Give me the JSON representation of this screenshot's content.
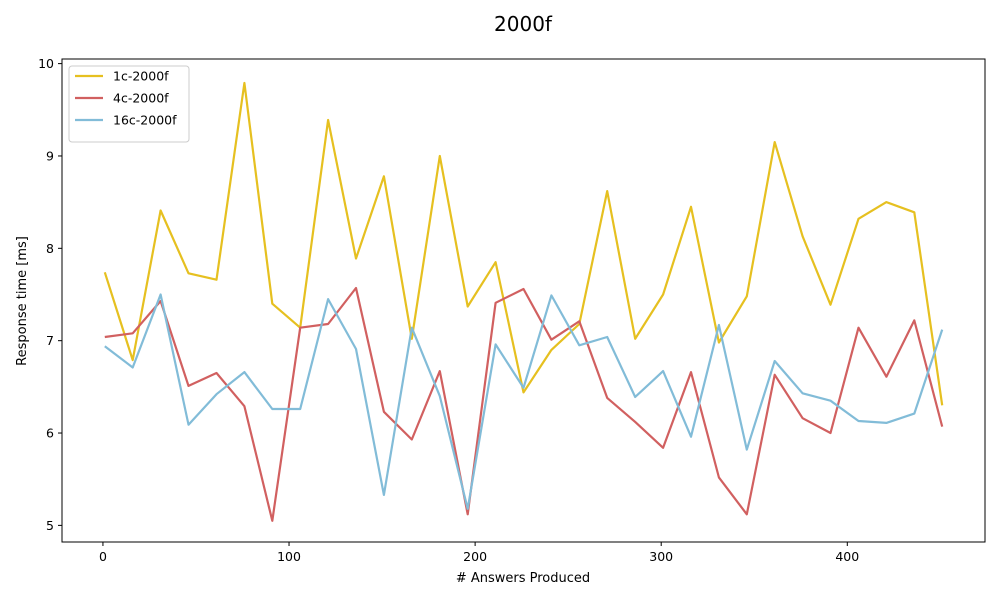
{
  "chart_data": {
    "type": "line",
    "title": "2000f",
    "xlabel": "# Answers Produced",
    "ylabel": "Response time [ms]",
    "xlim": [
      -22,
      474
    ],
    "ylim": [
      4.82,
      10.05
    ],
    "xticks": [
      0,
      100,
      200,
      300,
      400
    ],
    "yticks": [
      5,
      6,
      7,
      8,
      9,
      10
    ],
    "grid": false,
    "legend_position": "top-left",
    "x": [
      1,
      16,
      31,
      46,
      61,
      76,
      91,
      106,
      121,
      136,
      151,
      166,
      181,
      196,
      211,
      226,
      241,
      256,
      271,
      286,
      301,
      316,
      331,
      346,
      361,
      376,
      391,
      406,
      421,
      436,
      451
    ],
    "series": [
      {
        "name": "1c-2000f",
        "color": "#e6c020",
        "values": [
          7.74,
          6.79,
          8.41,
          7.73,
          7.66,
          9.79,
          7.4,
          7.14,
          9.39,
          7.89,
          8.78,
          7.02,
          9.0,
          7.37,
          7.85,
          6.44,
          6.9,
          7.18,
          8.62,
          7.02,
          7.5,
          8.45,
          6.98,
          7.48,
          9.15,
          8.13,
          7.39,
          8.32,
          8.5,
          8.39,
          6.3
        ]
      },
      {
        "name": "4c-2000f",
        "color": "#d16060",
        "values": [
          7.04,
          7.08,
          7.43,
          6.51,
          6.65,
          6.29,
          5.05,
          7.14,
          7.18,
          7.57,
          6.23,
          5.93,
          6.67,
          5.12,
          7.41,
          7.56,
          7.01,
          7.21,
          6.38,
          6.12,
          5.84,
          6.66,
          5.52,
          5.12,
          6.63,
          6.16,
          6.0,
          7.14,
          6.61,
          7.22,
          6.07
        ]
      },
      {
        "name": "16c-2000f",
        "color": "#82bcd8",
        "values": [
          6.94,
          6.71,
          7.5,
          6.09,
          6.42,
          6.66,
          6.26,
          6.26,
          7.45,
          6.91,
          5.33,
          7.14,
          6.4,
          5.18,
          6.96,
          6.49,
          7.49,
          6.95,
          7.04,
          6.39,
          6.67,
          5.96,
          7.17,
          5.82,
          6.78,
          6.43,
          6.35,
          6.13,
          6.11,
          6.21,
          7.12
        ]
      }
    ]
  }
}
